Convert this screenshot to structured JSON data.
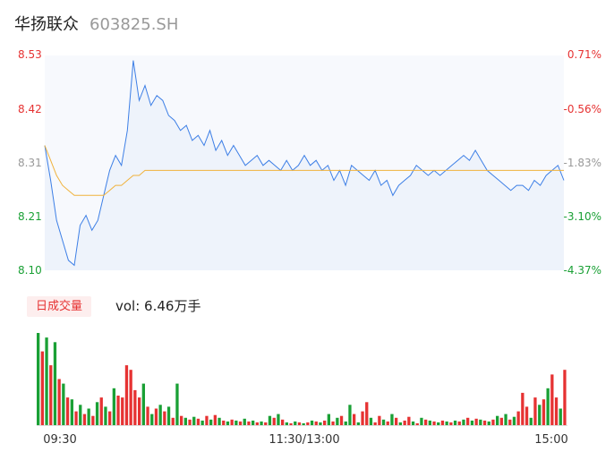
{
  "header": {
    "name": "华扬联众",
    "code": "603825.SH"
  },
  "volume_panel": {
    "badge": "日成交量",
    "label": "vol: 6.46万手"
  },
  "colors": {
    "price_line": "#3d7fe6",
    "avg_line": "#f0b23c",
    "up": "#e63232",
    "down": "#1aa035",
    "neutral_axis": "#999999",
    "fill": "#f7f9fd"
  },
  "chart_data": {
    "type": "line",
    "price_axis": {
      "ylim": [
        8.1,
        8.53
      ],
      "ticks": [
        "8.53",
        "8.42",
        "8.31",
        "8.21",
        "8.10"
      ]
    },
    "pct_axis": {
      "ticks": [
        "0.71%",
        "-0.56%",
        "-1.83%",
        "-3.10%",
        "-4.37%"
      ]
    },
    "x_ticks": [
      "09:30",
      "11:30/13:00",
      "15:00"
    ],
    "price": [
      8.35,
      8.28,
      8.2,
      8.16,
      8.12,
      8.11,
      8.19,
      8.21,
      8.18,
      8.2,
      8.25,
      8.3,
      8.33,
      8.31,
      8.38,
      8.52,
      8.44,
      8.47,
      8.43,
      8.45,
      8.44,
      8.41,
      8.4,
      8.38,
      8.39,
      8.36,
      8.37,
      8.35,
      8.38,
      8.34,
      8.36,
      8.33,
      8.35,
      8.33,
      8.31,
      8.32,
      8.33,
      8.31,
      8.32,
      8.31,
      8.3,
      8.32,
      8.3,
      8.31,
      8.33,
      8.31,
      8.32,
      8.3,
      8.31,
      8.28,
      8.3,
      8.27,
      8.31,
      8.3,
      8.29,
      8.28,
      8.3,
      8.27,
      8.28,
      8.25,
      8.27,
      8.28,
      8.29,
      8.31,
      8.3,
      8.29,
      8.3,
      8.29,
      8.3,
      8.31,
      8.32,
      8.33,
      8.32,
      8.34,
      8.32,
      8.3,
      8.29,
      8.28,
      8.27,
      8.26,
      8.27,
      8.27,
      8.26,
      8.28,
      8.27,
      8.29,
      8.3,
      8.31,
      8.28
    ],
    "avg": [
      8.35,
      8.32,
      8.29,
      8.27,
      8.26,
      8.25,
      8.25,
      8.25,
      8.25,
      8.25,
      8.25,
      8.26,
      8.27,
      8.27,
      8.28,
      8.29,
      8.29,
      8.3,
      8.3,
      8.3,
      8.3,
      8.3,
      8.3,
      8.3,
      8.3,
      8.3,
      8.3,
      8.3,
      8.3,
      8.3,
      8.3,
      8.3,
      8.3,
      8.3,
      8.3,
      8.3,
      8.3,
      8.3,
      8.3,
      8.3,
      8.3,
      8.3,
      8.3,
      8.3,
      8.3,
      8.3,
      8.3,
      8.3,
      8.3,
      8.3,
      8.3,
      8.3,
      8.3,
      8.3,
      8.3,
      8.3,
      8.3,
      8.3,
      8.3,
      8.3,
      8.3,
      8.3,
      8.3,
      8.3,
      8.3,
      8.3,
      8.3,
      8.3,
      8.3,
      8.3,
      8.3,
      8.3,
      8.3,
      8.3,
      8.3,
      8.3,
      8.3,
      8.3,
      8.3,
      8.3,
      8.3,
      8.3,
      8.3,
      8.3,
      8.3,
      8.3,
      8.3,
      8.3,
      8.3
    ],
    "volume": [
      {
        "v": 100,
        "d": "down"
      },
      {
        "v": 80,
        "d": "up"
      },
      {
        "v": 95,
        "d": "down"
      },
      {
        "v": 65,
        "d": "up"
      },
      {
        "v": 90,
        "d": "down"
      },
      {
        "v": 50,
        "d": "up"
      },
      {
        "v": 45,
        "d": "down"
      },
      {
        "v": 30,
        "d": "up"
      },
      {
        "v": 28,
        "d": "down"
      },
      {
        "v": 15,
        "d": "up"
      },
      {
        "v": 22,
        "d": "down"
      },
      {
        "v": 12,
        "d": "up"
      },
      {
        "v": 18,
        "d": "down"
      },
      {
        "v": 10,
        "d": "up"
      },
      {
        "v": 25,
        "d": "down"
      },
      {
        "v": 30,
        "d": "up"
      },
      {
        "v": 20,
        "d": "down"
      },
      {
        "v": 15,
        "d": "up"
      },
      {
        "v": 40,
        "d": "down"
      },
      {
        "v": 32,
        "d": "up"
      },
      {
        "v": 30,
        "d": "up"
      },
      {
        "v": 65,
        "d": "up"
      },
      {
        "v": 60,
        "d": "up"
      },
      {
        "v": 38,
        "d": "up"
      },
      {
        "v": 30,
        "d": "up"
      },
      {
        "v": 45,
        "d": "down"
      },
      {
        "v": 20,
        "d": "up"
      },
      {
        "v": 12,
        "d": "down"
      },
      {
        "v": 18,
        "d": "up"
      },
      {
        "v": 22,
        "d": "down"
      },
      {
        "v": 15,
        "d": "up"
      },
      {
        "v": 20,
        "d": "down"
      },
      {
        "v": 8,
        "d": "up"
      },
      {
        "v": 45,
        "d": "down"
      },
      {
        "v": 10,
        "d": "up"
      },
      {
        "v": 8,
        "d": "down"
      },
      {
        "v": 6,
        "d": "up"
      },
      {
        "v": 9,
        "d": "down"
      },
      {
        "v": 7,
        "d": "up"
      },
      {
        "v": 5,
        "d": "down"
      },
      {
        "v": 10,
        "d": "up"
      },
      {
        "v": 6,
        "d": "down"
      },
      {
        "v": 11,
        "d": "up"
      },
      {
        "v": 8,
        "d": "down"
      },
      {
        "v": 5,
        "d": "up"
      },
      {
        "v": 4,
        "d": "down"
      },
      {
        "v": 6,
        "d": "up"
      },
      {
        "v": 5,
        "d": "down"
      },
      {
        "v": 4,
        "d": "up"
      },
      {
        "v": 7,
        "d": "down"
      },
      {
        "v": 4,
        "d": "up"
      },
      {
        "v": 5,
        "d": "down"
      },
      {
        "v": 3,
        "d": "up"
      },
      {
        "v": 4,
        "d": "down"
      },
      {
        "v": 3,
        "d": "up"
      },
      {
        "v": 10,
        "d": "down"
      },
      {
        "v": 8,
        "d": "up"
      },
      {
        "v": 12,
        "d": "down"
      },
      {
        "v": 6,
        "d": "up"
      },
      {
        "v": 3,
        "d": "down"
      },
      {
        "v": 2,
        "d": "up"
      },
      {
        "v": 4,
        "d": "down"
      },
      {
        "v": 3,
        "d": "up"
      },
      {
        "v": 2,
        "d": "down"
      },
      {
        "v": 3,
        "d": "up"
      },
      {
        "v": 5,
        "d": "down"
      },
      {
        "v": 4,
        "d": "up"
      },
      {
        "v": 3,
        "d": "down"
      },
      {
        "v": 5,
        "d": "up"
      },
      {
        "v": 12,
        "d": "down"
      },
      {
        "v": 4,
        "d": "up"
      },
      {
        "v": 8,
        "d": "down"
      },
      {
        "v": 10,
        "d": "up"
      },
      {
        "v": 4,
        "d": "down"
      },
      {
        "v": 22,
        "d": "down"
      },
      {
        "v": 12,
        "d": "up"
      },
      {
        "v": 3,
        "d": "down"
      },
      {
        "v": 15,
        "d": "up"
      },
      {
        "v": 25,
        "d": "up"
      },
      {
        "v": 8,
        "d": "down"
      },
      {
        "v": 3,
        "d": "up"
      },
      {
        "v": 10,
        "d": "up"
      },
      {
        "v": 6,
        "d": "down"
      },
      {
        "v": 4,
        "d": "up"
      },
      {
        "v": 12,
        "d": "down"
      },
      {
        "v": 8,
        "d": "up"
      },
      {
        "v": 3,
        "d": "down"
      },
      {
        "v": 5,
        "d": "up"
      },
      {
        "v": 9,
        "d": "up"
      },
      {
        "v": 4,
        "d": "down"
      },
      {
        "v": 2,
        "d": "up"
      },
      {
        "v": 8,
        "d": "down"
      },
      {
        "v": 6,
        "d": "up"
      },
      {
        "v": 5,
        "d": "down"
      },
      {
        "v": 4,
        "d": "up"
      },
      {
        "v": 3,
        "d": "down"
      },
      {
        "v": 5,
        "d": "up"
      },
      {
        "v": 4,
        "d": "down"
      },
      {
        "v": 3,
        "d": "up"
      },
      {
        "v": 5,
        "d": "down"
      },
      {
        "v": 4,
        "d": "up"
      },
      {
        "v": 6,
        "d": "down"
      },
      {
        "v": 8,
        "d": "up"
      },
      {
        "v": 5,
        "d": "down"
      },
      {
        "v": 7,
        "d": "up"
      },
      {
        "v": 6,
        "d": "down"
      },
      {
        "v": 5,
        "d": "up"
      },
      {
        "v": 4,
        "d": "down"
      },
      {
        "v": 6,
        "d": "up"
      },
      {
        "v": 10,
        "d": "down"
      },
      {
        "v": 8,
        "d": "up"
      },
      {
        "v": 12,
        "d": "down"
      },
      {
        "v": 6,
        "d": "up"
      },
      {
        "v": 9,
        "d": "down"
      },
      {
        "v": 15,
        "d": "up"
      },
      {
        "v": 35,
        "d": "up"
      },
      {
        "v": 20,
        "d": "up"
      },
      {
        "v": 8,
        "d": "down"
      },
      {
        "v": 30,
        "d": "up"
      },
      {
        "v": 22,
        "d": "down"
      },
      {
        "v": 28,
        "d": "up"
      },
      {
        "v": 40,
        "d": "down"
      },
      {
        "v": 55,
        "d": "up"
      },
      {
        "v": 30,
        "d": "up"
      },
      {
        "v": 18,
        "d": "down"
      },
      {
        "v": 60,
        "d": "up"
      }
    ]
  }
}
